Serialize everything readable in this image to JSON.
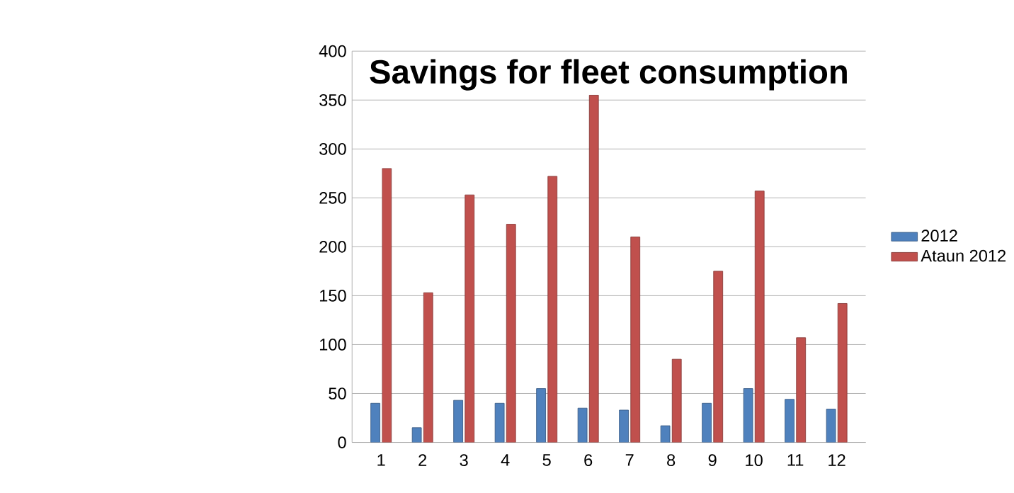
{
  "chart_data": {
    "type": "bar",
    "title": "Savings for fleet consumption",
    "categories": [
      "1",
      "2",
      "3",
      "4",
      "5",
      "6",
      "7",
      "8",
      "9",
      "10",
      "11",
      "12"
    ],
    "series": [
      {
        "name": "2012",
        "color": "#4f81bd",
        "values": [
          40,
          15,
          43,
          40,
          55,
          35,
          33,
          17,
          40,
          55,
          44,
          34
        ]
      },
      {
        "name": "Ataun 2012",
        "color": "#c0504d",
        "values": [
          280,
          153,
          253,
          223,
          272,
          355,
          210,
          85,
          175,
          257,
          107,
          142
        ]
      }
    ],
    "ylim": [
      0,
      400
    ],
    "yticks": [
      0,
      50,
      100,
      150,
      200,
      250,
      300,
      350,
      400
    ],
    "grid": "y",
    "legend": "right"
  }
}
